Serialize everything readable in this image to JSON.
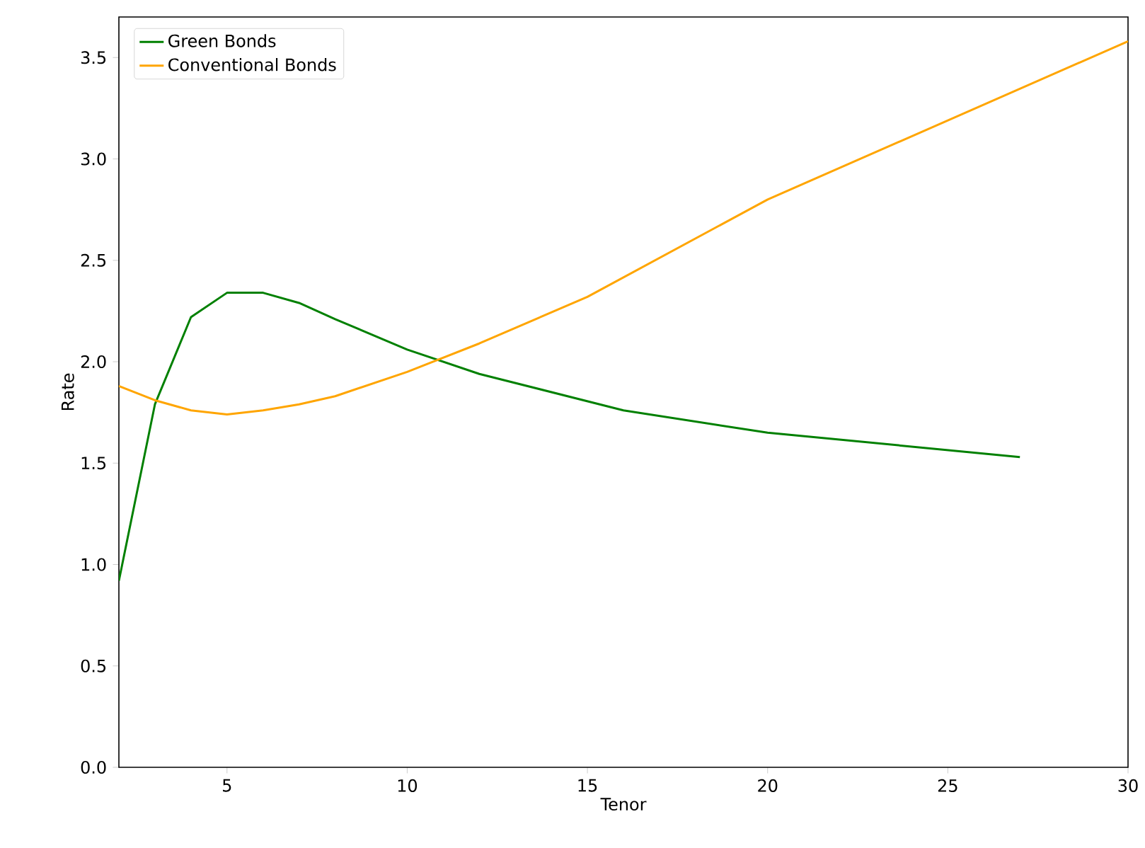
{
  "chart_data": {
    "type": "line",
    "xlabel": "Tenor",
    "ylabel": "Rate",
    "x": [
      2,
      3,
      4,
      5,
      6,
      7,
      8,
      10,
      12,
      15,
      16,
      20,
      27,
      30
    ],
    "series": [
      {
        "name": "Green Bonds",
        "color": "#008000",
        "values": [
          0.92,
          1.79,
          2.22,
          2.34,
          2.34,
          2.29,
          2.21,
          2.06,
          1.94,
          null,
          1.76,
          1.65,
          1.53,
          null
        ]
      },
      {
        "name": "Conventional Bonds",
        "color": "#ffa500",
        "values": [
          1.88,
          1.81,
          1.76,
          1.74,
          1.76,
          1.79,
          1.83,
          1.95,
          2.09,
          2.32,
          null,
          2.8,
          null,
          3.58
        ]
      }
    ],
    "xlim": [
      2,
      30
    ],
    "ylim": [
      0,
      3.7
    ],
    "xticks": [
      5,
      10,
      15,
      20,
      25,
      30
    ],
    "yticks": [
      {
        "value": 0,
        "label": "0.0"
      },
      0.5,
      {
        "value": 1,
        "label": "1.0"
      },
      1.5,
      {
        "value": 2,
        "label": "2.0"
      },
      2.5,
      {
        "value": 3,
        "label": "3.0"
      },
      3.5
    ],
    "legend": "top left",
    "grid": false,
    "marker": "none",
    "line_style": "solid"
  }
}
